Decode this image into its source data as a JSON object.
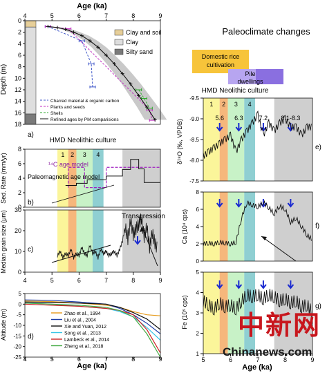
{
  "chart_data": [
    {
      "id": "a",
      "type": "scatter",
      "panel_label": "a)",
      "xlabel": "Age (ka)",
      "ylabel": "Depth (m)",
      "xlim": [
        4,
        9
      ],
      "ylim": [
        0,
        18
      ],
      "x_ticks": [
        4,
        5,
        6,
        7,
        8,
        9
      ],
      "y_ticks": [
        0,
        2,
        4,
        6,
        8,
        10,
        12,
        14,
        16,
        18
      ],
      "lithology": [
        {
          "name": "Clay and soil",
          "from": 0,
          "to": 1.1,
          "color": "#e7cf99"
        },
        {
          "name": "Clay",
          "from": 1.1,
          "to": 16.2,
          "color": "#dedede"
        },
        {
          "name": "Silty sand",
          "from": 16.2,
          "to": 18,
          "color": "#7a7a7a"
        }
      ],
      "legend": [
        {
          "name": "Clay and soil",
          "color": "#e7cf99"
        },
        {
          "name": "Clay",
          "color": "#dedede"
        },
        {
          "name": "Silty sand",
          "color": "#7a7a7a"
        }
      ],
      "series": [
        {
          "name": "Charred material & organic carbon",
          "color": "#3d55c8",
          "dashed": true,
          "x": [
            4.85,
            6.1,
            6.45,
            6.5
          ],
          "y": [
            1.0,
            3.5,
            7.5,
            11.5
          ]
        },
        {
          "name": "Plants and seeds",
          "color": "#c02ec0",
          "dashed": true,
          "x": [
            4.85,
            5.6,
            8.6,
            8.7
          ],
          "y": [
            1.0,
            1.4,
            15.5,
            17.3
          ]
        },
        {
          "name": "Shells",
          "color": "#2eaa2e",
          "dashed": true,
          "x": [
            8.2,
            8.4,
            8.6
          ],
          "y": [
            12.0,
            13.5,
            15.2
          ]
        },
        {
          "name": "Refined ages by PM comparisions",
          "color": "#111111",
          "dashed": false,
          "x": [
            4.85,
            5.2,
            5.5,
            5.8,
            6.1,
            6.4,
            6.7,
            7.0,
            7.3,
            7.6,
            7.9,
            8.2,
            8.5,
            8.8
          ],
          "y": [
            1.0,
            1.2,
            1.5,
            2.0,
            2.6,
            3.5,
            4.6,
            6.0,
            7.5,
            9.2,
            11.0,
            13.0,
            15.0,
            17.2
          ]
        }
      ]
    },
    {
      "id": "b",
      "type": "line",
      "panel_label": "b)",
      "title": "HMD Neolithic culture",
      "ylabel": "Sed. Rate (mm/yr)",
      "xlim": [
        4,
        9
      ],
      "ylim": [
        0,
        8
      ],
      "y_ticks": [
        0,
        2,
        4,
        6,
        8
      ],
      "culture_stages": [
        "1",
        "2",
        "3",
        "4"
      ],
      "annotations": [
        "¹⁴C age model",
        "Paleomagnetic age model"
      ],
      "series": [
        {
          "name": "¹⁴C age model",
          "color": "#a020c0",
          "dashed": true,
          "x": [
            5.6,
            5.6,
            6.2,
            6.2,
            7.0,
            7.0,
            7.6,
            9.0
          ],
          "y": [
            2.7,
            5.5,
            5.5,
            2.7,
            2.7,
            5.5,
            5.5,
            5.5
          ]
        },
        {
          "name": "Paleomagnetic age model",
          "color": "#111111",
          "dashed": false,
          "x": [
            5.5,
            5.9,
            5.9,
            6.3,
            6.3,
            7.0,
            7.0,
            7.6,
            7.6,
            7.9,
            7.9,
            8.2,
            8.2,
            8.4,
            8.4,
            9.0
          ],
          "y": [
            3.0,
            3.0,
            3.3,
            3.3,
            3.8,
            3.8,
            4.3,
            4.3,
            5.2,
            5.2,
            6.6,
            6.6,
            5.3,
            5.3,
            3.4,
            3.4
          ]
        }
      ]
    },
    {
      "id": "c",
      "type": "line",
      "panel_label": "c)",
      "ylabel": "Median grain size (μm)",
      "xlim": [
        4,
        9
      ],
      "ylim": [
        0,
        30
      ],
      "y_ticks": [
        0,
        10,
        20,
        30
      ],
      "annotations": [
        "Transgression"
      ],
      "series": [
        {
          "name": "Median grain size",
          "color": "#111111",
          "x": [
            5.2,
            5.3,
            5.4,
            5.5,
            5.6,
            5.7,
            5.8,
            5.9,
            6.0,
            6.1,
            6.2,
            6.3,
            6.4,
            6.5,
            6.6,
            6.7,
            6.8,
            6.9,
            7.0,
            7.1,
            7.2,
            7.3,
            7.4,
            7.5,
            7.6,
            7.7,
            7.8,
            7.9,
            8.0,
            8.1,
            8.2,
            8.3,
            8.4,
            8.5,
            8.6,
            8.7,
            8.8,
            8.9
          ],
          "y": [
            8,
            10,
            7,
            9,
            8,
            11,
            7,
            9,
            8,
            12,
            9,
            8,
            13,
            9,
            10,
            7,
            11,
            9,
            10,
            8,
            9,
            10,
            8,
            11,
            15,
            22,
            16,
            25,
            18,
            21,
            23,
            26,
            17,
            22,
            12,
            19,
            14,
            11
          ]
        }
      ]
    },
    {
      "id": "d",
      "type": "line",
      "panel_label": "d)",
      "xlabel": "Age (ka)",
      "ylabel": "Altitude (m)",
      "xlim": [
        4,
        9
      ],
      "ylim": [
        -25,
        5
      ],
      "x_ticks": [
        4,
        5,
        6,
        7,
        8,
        9
      ],
      "y_ticks": [
        -25,
        -20,
        -15,
        -10,
        -5,
        0,
        5
      ],
      "series": [
        {
          "name": "Zhao et al., 1994",
          "color": "#e69a1a",
          "x": [
            4,
            5,
            6,
            7,
            7.5,
            8,
            8.5,
            9
          ],
          "y": [
            1.5,
            1.2,
            0.5,
            -0.5,
            -1.5,
            -3.5,
            -5.0,
            -5.5
          ]
        },
        {
          "name": "Liu et al., 2004",
          "color": "#1d3da8",
          "x": [
            4,
            5,
            6,
            7,
            7.5,
            8,
            8.5,
            9
          ],
          "y": [
            2.0,
            1.8,
            1.0,
            0.0,
            -2.0,
            -5.0,
            -9.0,
            -14.0
          ]
        },
        {
          "name": "Xie and Yuan, 2012",
          "color": "#111111",
          "x": [
            4,
            5,
            6,
            7,
            7.5,
            8,
            8.5,
            9
          ],
          "y": [
            1.0,
            0.8,
            0.5,
            0.0,
            -1.5,
            -4.0,
            -7.0,
            -12.0
          ]
        },
        {
          "name": "Song et al., 2013",
          "color": "#35c4e6",
          "x": [
            4,
            5,
            6,
            7,
            7.5,
            8,
            8.5,
            9
          ],
          "y": [
            0.5,
            0.0,
            -1.0,
            -2.0,
            -3.5,
            -6.0,
            -11.0,
            -17.0
          ]
        },
        {
          "name": "Lambeck et al., 2014",
          "color": "#cc2222",
          "x": [
            4,
            5,
            6,
            7,
            7.5,
            8,
            8.5,
            9
          ],
          "y": [
            0.0,
            -0.5,
            -1.0,
            -2.0,
            -3.0,
            -5.0,
            -12.0,
            -23.0
          ]
        },
        {
          "name": "Zheng et al., 2018",
          "color": "#44aa44",
          "x": [
            4,
            5,
            6,
            7,
            7.5,
            8,
            8.5,
            9
          ],
          "y": [
            0.5,
            0.0,
            -0.5,
            -1.5,
            -3.0,
            -6.0,
            -14.0,
            -25.0
          ]
        }
      ]
    },
    {
      "id": "e",
      "type": "line",
      "panel_label": "e)",
      "ylabel": "δ¹⁸O (‰, VPDB)",
      "ylim": [
        -9.5,
        -7.5
      ],
      "y_ticks": [
        -9.5,
        -9.0,
        -8.5,
        -8.0,
        -7.5
      ],
      "y_inverted": true,
      "series": [
        {
          "name": "δ¹⁸O",
          "color": "#111111",
          "x": [
            5.0,
            5.2,
            5.4,
            5.6,
            5.8,
            6.0,
            6.2,
            6.4,
            6.6,
            6.8,
            7.0,
            7.2,
            7.4,
            7.6,
            7.8,
            8.0,
            8.2,
            8.4,
            8.6,
            8.8,
            9.0
          ],
          "y": [
            -8.1,
            -8.2,
            -8.3,
            -8.4,
            -8.5,
            -8.6,
            -8.2,
            -8.5,
            -8.7,
            -8.9,
            -9.1,
            -8.6,
            -8.9,
            -8.7,
            -8.9,
            -9.0,
            -8.8,
            -8.8,
            -8.6,
            -8.8,
            -8.8
          ]
        }
      ]
    },
    {
      "id": "f",
      "type": "line",
      "panel_label": "f)",
      "ylabel": "Ca (10⁴ cps)",
      "ylim": [
        0,
        8
      ],
      "y_ticks": [
        0,
        2,
        4,
        6,
        8
      ],
      "series": [
        {
          "name": "Ca",
          "color": "#111111",
          "x": [
            5.0,
            5.2,
            5.4,
            5.6,
            5.8,
            6.0,
            6.2,
            6.4,
            6.6,
            6.8,
            7.0,
            7.2,
            7.4,
            7.6,
            7.8,
            8.0,
            8.2,
            8.4,
            8.6,
            8.8,
            9.0
          ],
          "y": [
            2.0,
            2.1,
            2.0,
            2.2,
            2.1,
            2.0,
            2.2,
            5.0,
            6.8,
            6.5,
            6.3,
            6.8,
            6.2,
            5.5,
            6.4,
            6.0,
            4.5,
            5.0,
            4.0,
            3.0,
            2.5
          ]
        }
      ]
    },
    {
      "id": "g",
      "type": "line",
      "panel_label": "g)",
      "xlabel": "Age (ka)",
      "ylabel": "Fe (10⁵ cps)",
      "xlim": [
        5,
        9
      ],
      "ylim": [
        1,
        5
      ],
      "x_ticks": [
        5,
        6,
        7,
        8,
        9
      ],
      "y_ticks": [
        1,
        2,
        3,
        4,
        5
      ],
      "series": [
        {
          "name": "Fe",
          "color": "#111111",
          "x": [
            5.0,
            5.2,
            5.4,
            5.6,
            5.8,
            6.0,
            6.2,
            6.4,
            6.6,
            6.8,
            7.0,
            7.2,
            7.4,
            7.6,
            7.8,
            8.0,
            8.2,
            8.4,
            8.6,
            8.8,
            9.0
          ],
          "y": [
            3.6,
            3.4,
            3.2,
            3.5,
            3.3,
            3.4,
            3.2,
            3.6,
            3.9,
            3.8,
            3.9,
            3.7,
            3.9,
            3.8,
            3.6,
            3.7,
            3.5,
            3.6,
            3.3,
            3.4,
            3.0
          ]
        }
      ]
    }
  ],
  "right_panel": {
    "title": "Paleoclimate changes",
    "x_axis_label": "Age (ka)",
    "domestic_rice_label": "Domestic rice cultivation",
    "pile_dwellings_label": "Pile dwellings",
    "culture_label": "HMD Neolithic culture",
    "stages": [
      "1",
      "2",
      "3",
      "4"
    ],
    "annotations": [
      "5.6",
      "6.3",
      "7.2",
      "8.1-8.3"
    ]
  },
  "watermark": {
    "text": "中新网",
    "site": "Chinanews.com"
  }
}
